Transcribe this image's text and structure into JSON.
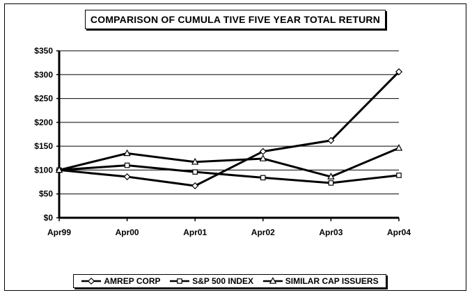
{
  "chart_data": {
    "type": "line",
    "title": "COMPARISON OF CUMULA TIVE FIVE YEAR TOTAL RETURN",
    "categories": [
      "Apr99",
      "Apr00",
      "Apr01",
      "Apr02",
      "Apr03",
      "Apr04"
    ],
    "y_ticks": [
      "$0",
      "$50",
      "$100",
      "$150",
      "$200",
      "$250",
      "$300",
      "$350"
    ],
    "ylim": [
      0,
      350
    ],
    "grid": "horizontal",
    "legend_position": "bottom",
    "series": [
      {
        "name": "AMREP CORP",
        "marker": "diamond",
        "values": [
          100,
          86,
          67,
          139,
          162,
          306
        ]
      },
      {
        "name": "S&P 500 INDEX",
        "marker": "square",
        "values": [
          100,
          110,
          96,
          84,
          73,
          89
        ]
      },
      {
        "name": "SIMILAR CAP ISSUERS",
        "marker": "triangle",
        "values": [
          100,
          135,
          117,
          124,
          86,
          146
        ]
      }
    ],
    "colors": {
      "line": "#000000",
      "marker_fill": "#ffffff",
      "background": "#ffffff"
    }
  }
}
